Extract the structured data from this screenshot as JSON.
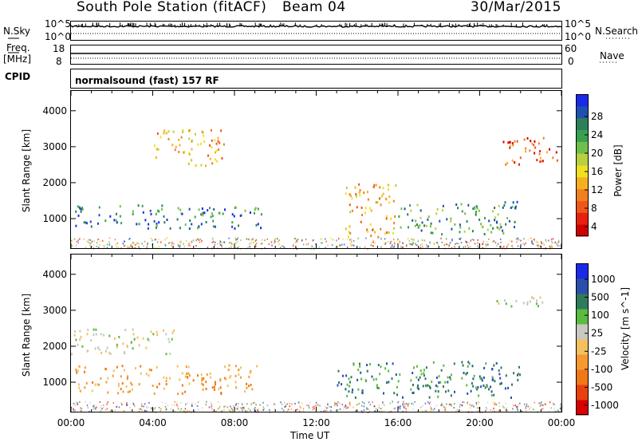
{
  "header": {
    "station": "South Pole Station (fitACF)",
    "beam": "Beam 04",
    "date": "30/Mar/2015"
  },
  "strips": {
    "nsky_label": "N.Sky",
    "nsky_ticks": [
      "10^5",
      "10^0"
    ],
    "nsearch_label": "N.Search",
    "nsearch_ticks": [
      "10^5",
      "10^0"
    ],
    "freq_label": "Freq.",
    "freq_unit": "[MHz]",
    "freq_ticks": [
      "18",
      "8"
    ],
    "nave_label": "Nave",
    "nave_ticks": [
      "60",
      "0"
    ],
    "cpid_label": "CPID",
    "cpid_value": "normalsound (fast) 157 RF"
  },
  "chart_data": [
    {
      "type": "heatmap",
      "panel": "power",
      "xlabel": "",
      "ylabel": "Slant Range [km]",
      "x_ticks": [
        "00:00",
        "04:00",
        "08:00",
        "12:00",
        "16:00",
        "20:00",
        "00:00"
      ],
      "x_range_hours": [
        0,
        24
      ],
      "y_ticks": [
        1000,
        2000,
        3000,
        4000
      ],
      "ylim": [
        180,
        4550
      ],
      "colorbar_label": "Power [dB]",
      "colorbar_ticks": [
        "28",
        "24",
        "20",
        "16",
        "12",
        "8",
        "4"
      ],
      "colorbar_colors": [
        "#1a2be8",
        "#2050b0",
        "#2c7f5a",
        "#3aa050",
        "#6fc04a",
        "#b8d040",
        "#f0e020",
        "#f5b020",
        "#f08020",
        "#f05818",
        "#e82010",
        "#d00000"
      ],
      "regions": [
        {
          "t0": 0.2,
          "t1": 9.3,
          "r0": 750,
          "r1": 1400,
          "level": 24
        },
        {
          "t0": 4.0,
          "t1": 7.5,
          "r0": 2500,
          "r1": 3500,
          "level": 12
        },
        {
          "t0": 16.0,
          "t1": 21.8,
          "r0": 600,
          "r1": 1500,
          "level": 22
        },
        {
          "t0": 13.4,
          "t1": 16.0,
          "r0": 500,
          "r1": 2000,
          "level": 10
        },
        {
          "t0": 21.0,
          "t1": 23.8,
          "r0": 2500,
          "r1": 3300,
          "level": 6
        }
      ]
    },
    {
      "type": "heatmap",
      "panel": "velocity",
      "xlabel": "Time UT",
      "ylabel": "Slant Range [km]",
      "x_ticks": [
        "00:00",
        "04:00",
        "08:00",
        "12:00",
        "16:00",
        "20:00",
        "00:00"
      ],
      "x_range_hours": [
        0,
        24
      ],
      "y_ticks": [
        1000,
        2000,
        3000,
        4000
      ],
      "ylim": [
        180,
        4550
      ],
      "colorbar_label": "Velocity [m s^-1]",
      "colorbar_ticks": [
        "1000",
        "500",
        "100",
        "25",
        "-25",
        "-100",
        "-500",
        "-1000"
      ],
      "colorbar_colors": [
        "#1a2be8",
        "#2a4fa8",
        "#2e7a5a",
        "#5abb40",
        "#c8c8c0",
        "#f5c060",
        "#f59a30",
        "#f07818",
        "#e84010",
        "#d80000"
      ],
      "regions": [
        {
          "t0": 0.2,
          "t1": 9.3,
          "r0": 700,
          "r1": 1500,
          "velocity": -500
        },
        {
          "t0": 0.0,
          "t1": 5.0,
          "r0": 1800,
          "r1": 2500,
          "velocity": 0
        },
        {
          "t0": 13.0,
          "t1": 22.0,
          "r0": 600,
          "r1": 1600,
          "velocity": 200
        },
        {
          "t0": 20.5,
          "t1": 23.5,
          "r0": 3100,
          "r1": 3400,
          "velocity": 0
        }
      ]
    }
  ]
}
